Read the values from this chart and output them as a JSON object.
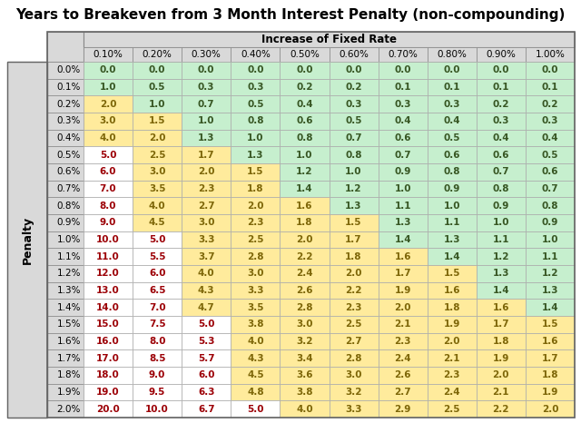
{
  "title": "Years to Breakeven from 3 Month Interest Penalty (non-compounding)",
  "col_header_group": "Increase of Fixed Rate",
  "col_headers": [
    "0.10%",
    "0.20%",
    "0.30%",
    "0.40%",
    "0.50%",
    "0.60%",
    "0.70%",
    "0.80%",
    "0.90%",
    "1.00%"
  ],
  "row_headers": [
    "0.0%",
    "0.1%",
    "0.2%",
    "0.3%",
    "0.4%",
    "0.5%",
    "0.6%",
    "0.7%",
    "0.8%",
    "0.9%",
    "1.0%",
    "1.1%",
    "1.2%",
    "1.3%",
    "1.4%",
    "1.5%",
    "1.6%",
    "1.7%",
    "1.8%",
    "1.9%",
    "2.0%"
  ],
  "row_label": "Penalty",
  "data": [
    [
      0.0,
      0.0,
      0.0,
      0.0,
      0.0,
      0.0,
      0.0,
      0.0,
      0.0,
      0.0
    ],
    [
      1.0,
      0.5,
      0.3,
      0.3,
      0.2,
      0.2,
      0.1,
      0.1,
      0.1,
      0.1
    ],
    [
      2.0,
      1.0,
      0.7,
      0.5,
      0.4,
      0.3,
      0.3,
      0.3,
      0.2,
      0.2
    ],
    [
      3.0,
      1.5,
      1.0,
      0.8,
      0.6,
      0.5,
      0.4,
      0.4,
      0.3,
      0.3
    ],
    [
      4.0,
      2.0,
      1.3,
      1.0,
      0.8,
      0.7,
      0.6,
      0.5,
      0.4,
      0.4
    ],
    [
      5.0,
      2.5,
      1.7,
      1.3,
      1.0,
      0.8,
      0.7,
      0.6,
      0.6,
      0.5
    ],
    [
      6.0,
      3.0,
      2.0,
      1.5,
      1.2,
      1.0,
      0.9,
      0.8,
      0.7,
      0.6
    ],
    [
      7.0,
      3.5,
      2.3,
      1.8,
      1.4,
      1.2,
      1.0,
      0.9,
      0.8,
      0.7
    ],
    [
      8.0,
      4.0,
      2.7,
      2.0,
      1.6,
      1.3,
      1.1,
      1.0,
      0.9,
      0.8
    ],
    [
      9.0,
      4.5,
      3.0,
      2.3,
      1.8,
      1.5,
      1.3,
      1.1,
      1.0,
      0.9
    ],
    [
      10.0,
      5.0,
      3.3,
      2.5,
      2.0,
      1.7,
      1.4,
      1.3,
      1.1,
      1.0
    ],
    [
      11.0,
      5.5,
      3.7,
      2.8,
      2.2,
      1.8,
      1.6,
      1.4,
      1.2,
      1.1
    ],
    [
      12.0,
      6.0,
      4.0,
      3.0,
      2.4,
      2.0,
      1.7,
      1.5,
      1.3,
      1.2
    ],
    [
      13.0,
      6.5,
      4.3,
      3.3,
      2.6,
      2.2,
      1.9,
      1.6,
      1.4,
      1.3
    ],
    [
      14.0,
      7.0,
      4.7,
      3.5,
      2.8,
      2.3,
      2.0,
      1.8,
      1.6,
      1.4
    ],
    [
      15.0,
      7.5,
      5.0,
      3.8,
      3.0,
      2.5,
      2.1,
      1.9,
      1.7,
      1.5
    ],
    [
      16.0,
      8.0,
      5.3,
      4.0,
      3.2,
      2.7,
      2.3,
      2.0,
      1.8,
      1.6
    ],
    [
      17.0,
      8.5,
      5.7,
      4.3,
      3.4,
      2.8,
      2.4,
      2.1,
      1.9,
      1.7
    ],
    [
      18.0,
      9.0,
      6.0,
      4.5,
      3.6,
      3.0,
      2.6,
      2.3,
      2.0,
      1.8
    ],
    [
      19.0,
      9.5,
      6.3,
      4.8,
      3.8,
      3.2,
      2.7,
      2.4,
      2.1,
      1.9
    ],
    [
      20.0,
      10.0,
      6.7,
      5.0,
      4.0,
      3.3,
      2.9,
      2.5,
      2.2,
      2.0
    ]
  ],
  "color_green": "#c6efce",
  "color_yellow": "#ffeb9c",
  "color_white": "#ffffff",
  "color_header_bg": "#d9d9d9",
  "color_text_red": "#9c0006",
  "color_text_green_dark": "#375623",
  "color_text_yellow": "#7d6608",
  "title_fontsize": 11,
  "cell_fontsize": 7.5,
  "header_fontsize": 8.5,
  "penalty_label_fontsize": 9
}
